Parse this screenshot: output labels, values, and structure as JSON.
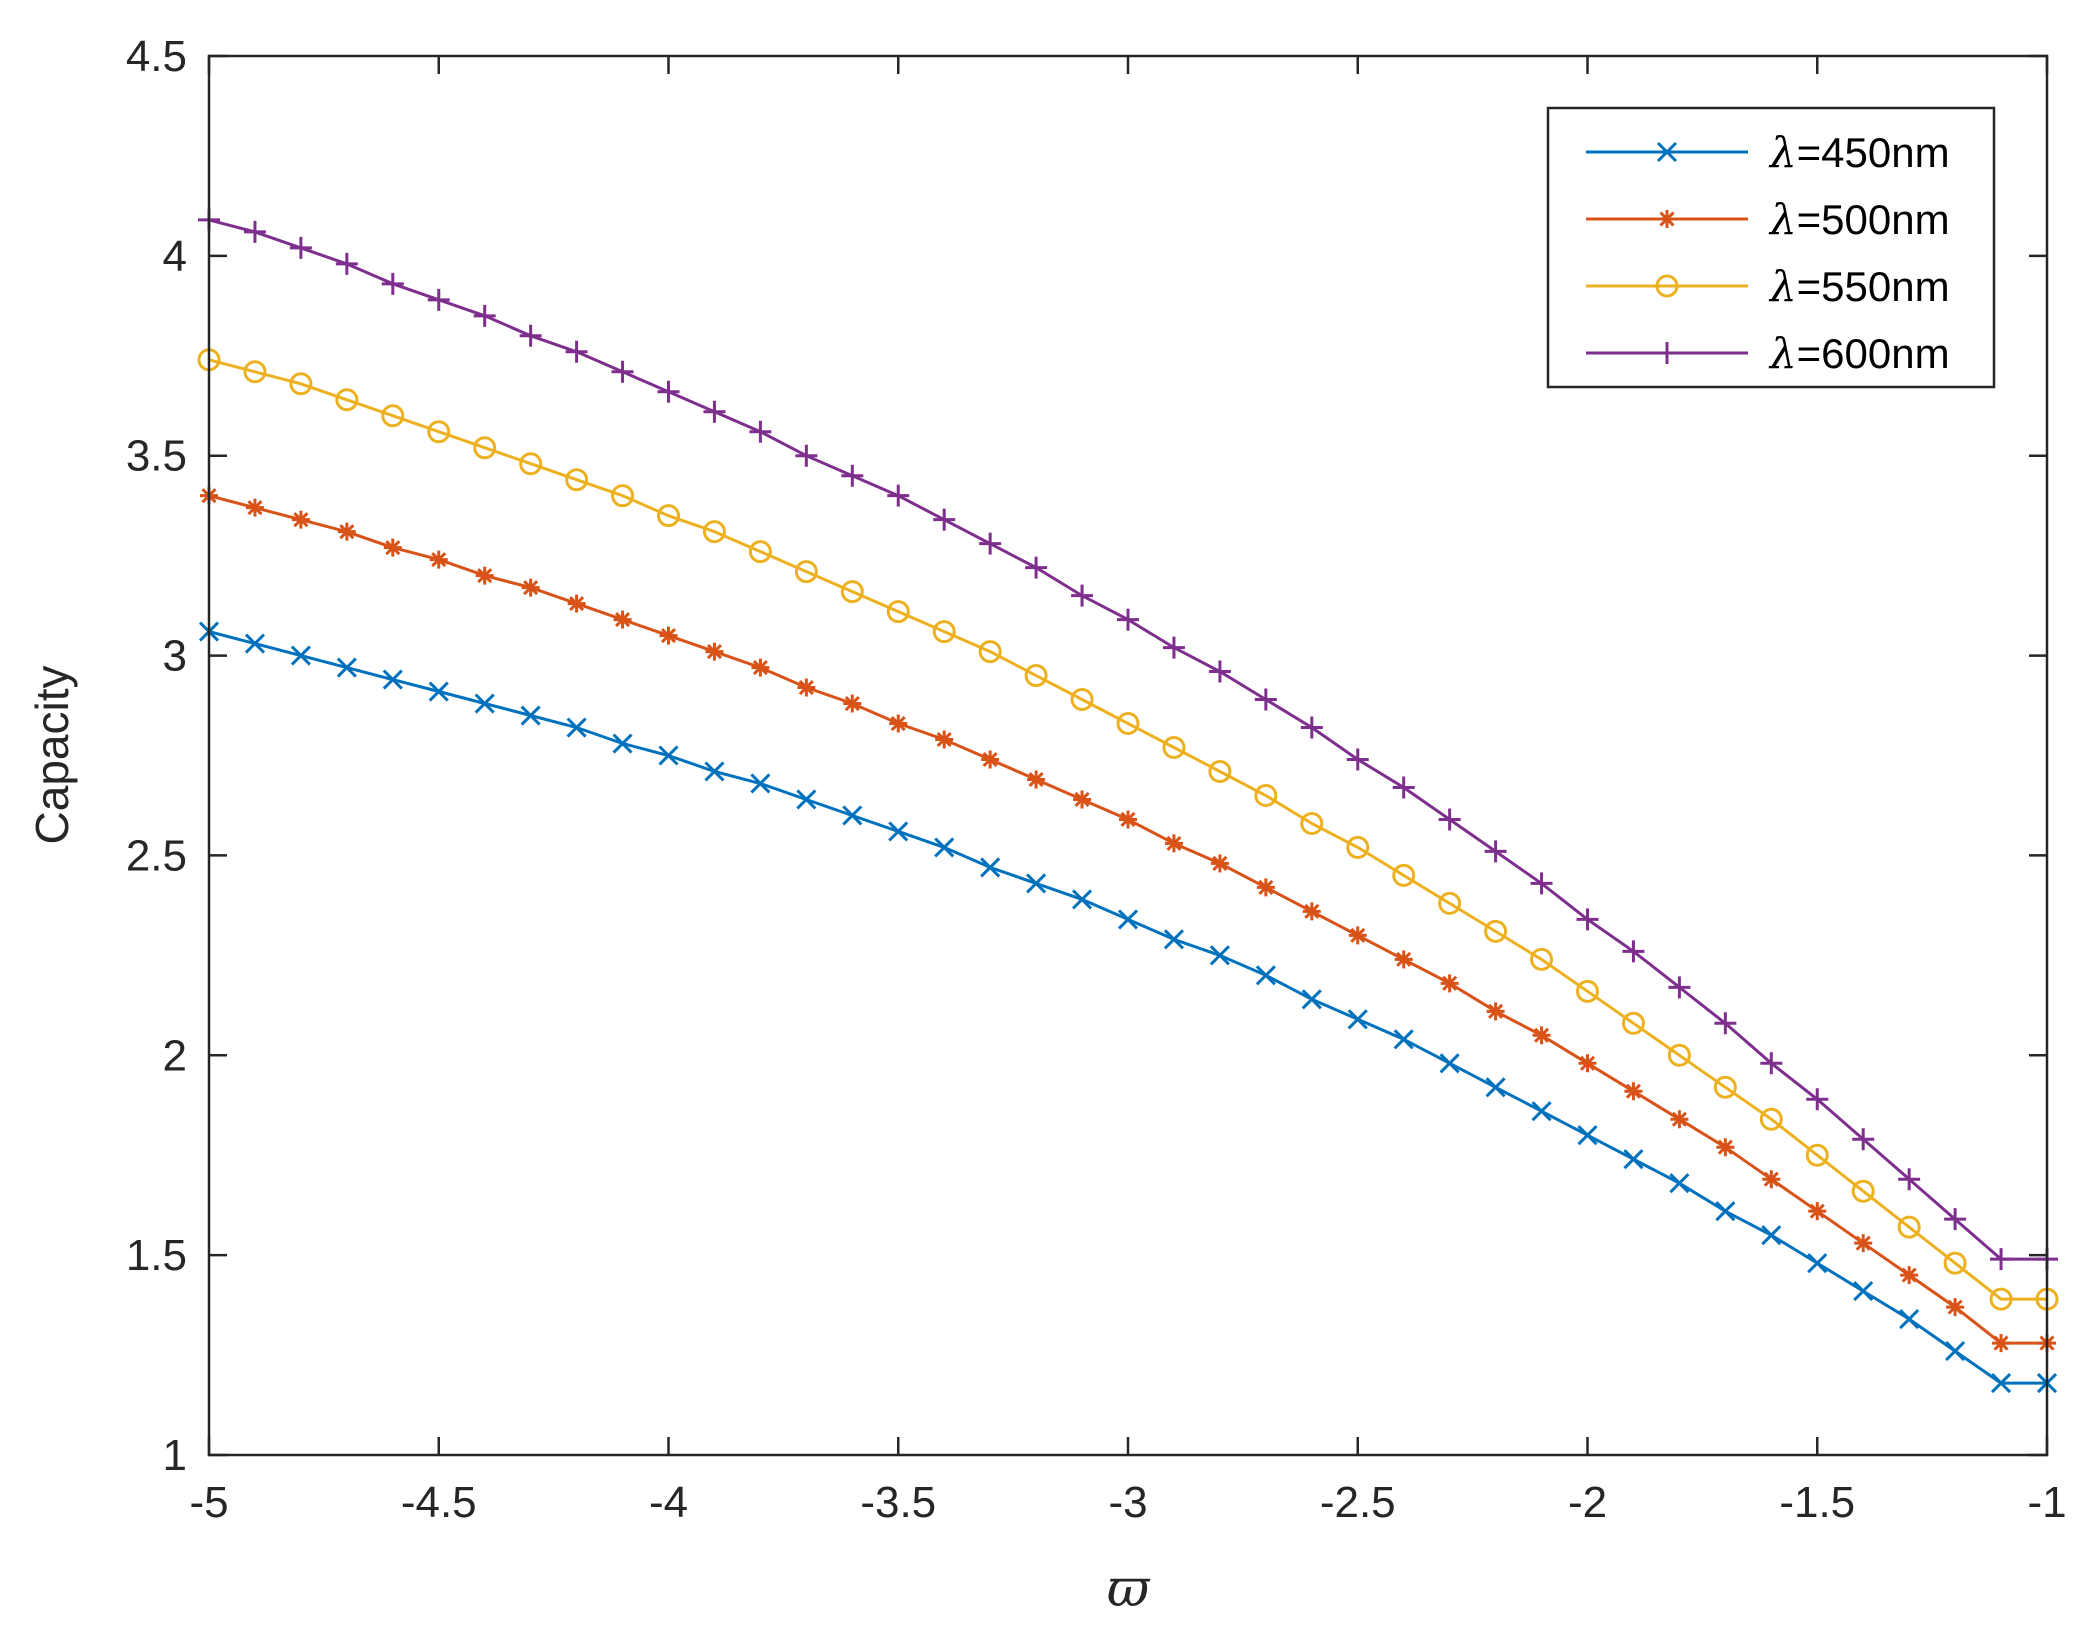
{
  "chart_data": {
    "type": "line",
    "xlabel": "ϖ",
    "ylabel": "Capacity",
    "xlim": [
      -5,
      -1
    ],
    "ylim": [
      1,
      4.5
    ],
    "xticks": [
      -5,
      -4.5,
      -4,
      -3.5,
      -3,
      -2.5,
      -2,
      -1.5,
      -1
    ],
    "xtick_labels": [
      "-5",
      "-4.5",
      "-4",
      "-3.5",
      "-3",
      "-2.5",
      "-2",
      "-1.5",
      "-1"
    ],
    "yticks": [
      1,
      1.5,
      2,
      2.5,
      3,
      3.5,
      4,
      4.5
    ],
    "ytick_labels": [
      "1",
      "1.5",
      "2",
      "2.5",
      "3",
      "3.5",
      "4",
      "4.5"
    ],
    "grid": false,
    "legend_position": "top-right",
    "x": [
      -5.0,
      -4.9,
      -4.8,
      -4.7,
      -4.6,
      -4.5,
      -4.4,
      -4.3,
      -4.2,
      -4.1,
      -4.0,
      -3.9,
      -3.8,
      -3.7,
      -3.6,
      -3.5,
      -3.4,
      -3.3,
      -3.2,
      -3.1,
      -3.0,
      -2.9,
      -2.8,
      -2.7,
      -2.6,
      -2.5,
      -2.4,
      -2.3,
      -2.2,
      -2.1,
      -2.0,
      -1.9,
      -1.8,
      -1.7,
      -1.6,
      -1.5,
      -1.4,
      -1.3,
      -1.2,
      -1.1,
      -1.0
    ],
    "series": [
      {
        "name": "λ=450nm",
        "color": "#0072BD",
        "marker": "x",
        "values": [
          3.06,
          3.03,
          3.0,
          2.97,
          2.94,
          2.91,
          2.88,
          2.85,
          2.82,
          2.78,
          2.75,
          2.71,
          2.68,
          2.64,
          2.6,
          2.56,
          2.52,
          2.47,
          2.43,
          2.39,
          2.34,
          2.29,
          2.25,
          2.2,
          2.14,
          2.09,
          2.04,
          1.98,
          1.92,
          1.86,
          1.8,
          1.74,
          1.68,
          1.61,
          1.55,
          1.48,
          1.41,
          1.34,
          1.26,
          1.18,
          1.18
        ]
      },
      {
        "name": "λ=500nm",
        "color": "#D95319",
        "marker": "star",
        "values": [
          3.4,
          3.37,
          3.34,
          3.31,
          3.27,
          3.24,
          3.2,
          3.17,
          3.13,
          3.09,
          3.05,
          3.01,
          2.97,
          2.92,
          2.88,
          2.83,
          2.79,
          2.74,
          2.69,
          2.64,
          2.59,
          2.53,
          2.48,
          2.42,
          2.36,
          2.3,
          2.24,
          2.18,
          2.11,
          2.05,
          1.98,
          1.91,
          1.84,
          1.77,
          1.69,
          1.61,
          1.53,
          1.45,
          1.37,
          1.28,
          1.28
        ]
      },
      {
        "name": "λ=550nm",
        "color": "#EDB120",
        "marker": "circle",
        "values": [
          3.74,
          3.71,
          3.68,
          3.64,
          3.6,
          3.56,
          3.52,
          3.48,
          3.44,
          3.4,
          3.35,
          3.31,
          3.26,
          3.21,
          3.16,
          3.11,
          3.06,
          3.01,
          2.95,
          2.89,
          2.83,
          2.77,
          2.71,
          2.65,
          2.58,
          2.52,
          2.45,
          2.38,
          2.31,
          2.24,
          2.16,
          2.08,
          2.0,
          1.92,
          1.84,
          1.75,
          1.66,
          1.57,
          1.48,
          1.39,
          1.39
        ]
      },
      {
        "name": "λ=600nm",
        "color": "#7E2F8E",
        "marker": "plus",
        "values": [
          4.09,
          4.06,
          4.02,
          3.98,
          3.93,
          3.89,
          3.85,
          3.8,
          3.76,
          3.71,
          3.66,
          3.61,
          3.56,
          3.5,
          3.45,
          3.4,
          3.34,
          3.28,
          3.22,
          3.15,
          3.09,
          3.02,
          2.96,
          2.89,
          2.82,
          2.74,
          2.67,
          2.59,
          2.51,
          2.43,
          2.34,
          2.26,
          2.17,
          2.08,
          1.98,
          1.89,
          1.79,
          1.69,
          1.59,
          1.49,
          1.49
        ]
      }
    ]
  }
}
